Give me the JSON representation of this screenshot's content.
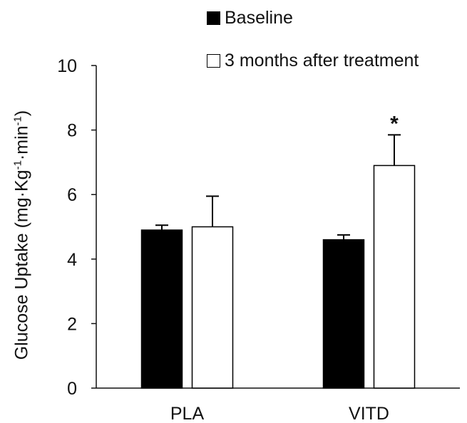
{
  "chart_data": {
    "type": "bar",
    "categories": [
      "PLA",
      "VITD"
    ],
    "series": [
      {
        "name": "Baseline",
        "color": "#000000",
        "values": [
          4.9,
          4.6
        ],
        "errors": [
          0.15,
          0.15
        ]
      },
      {
        "name": "3 months after treatment",
        "color": "#ffffff",
        "values": [
          5.0,
          6.9
        ],
        "errors": [
          0.95,
          0.95
        ]
      }
    ],
    "ylabel_parts": [
      "Glucose Uptake (mg·Kg",
      "-1",
      "·min",
      "-1",
      ")"
    ],
    "ylim": [
      0,
      10
    ],
    "yticks": [
      0,
      2,
      4,
      6,
      8,
      10
    ],
    "annotations": [
      {
        "category": "VITD",
        "series": 1,
        "text": "*"
      }
    ],
    "grid": false,
    "legend_position": "top"
  }
}
